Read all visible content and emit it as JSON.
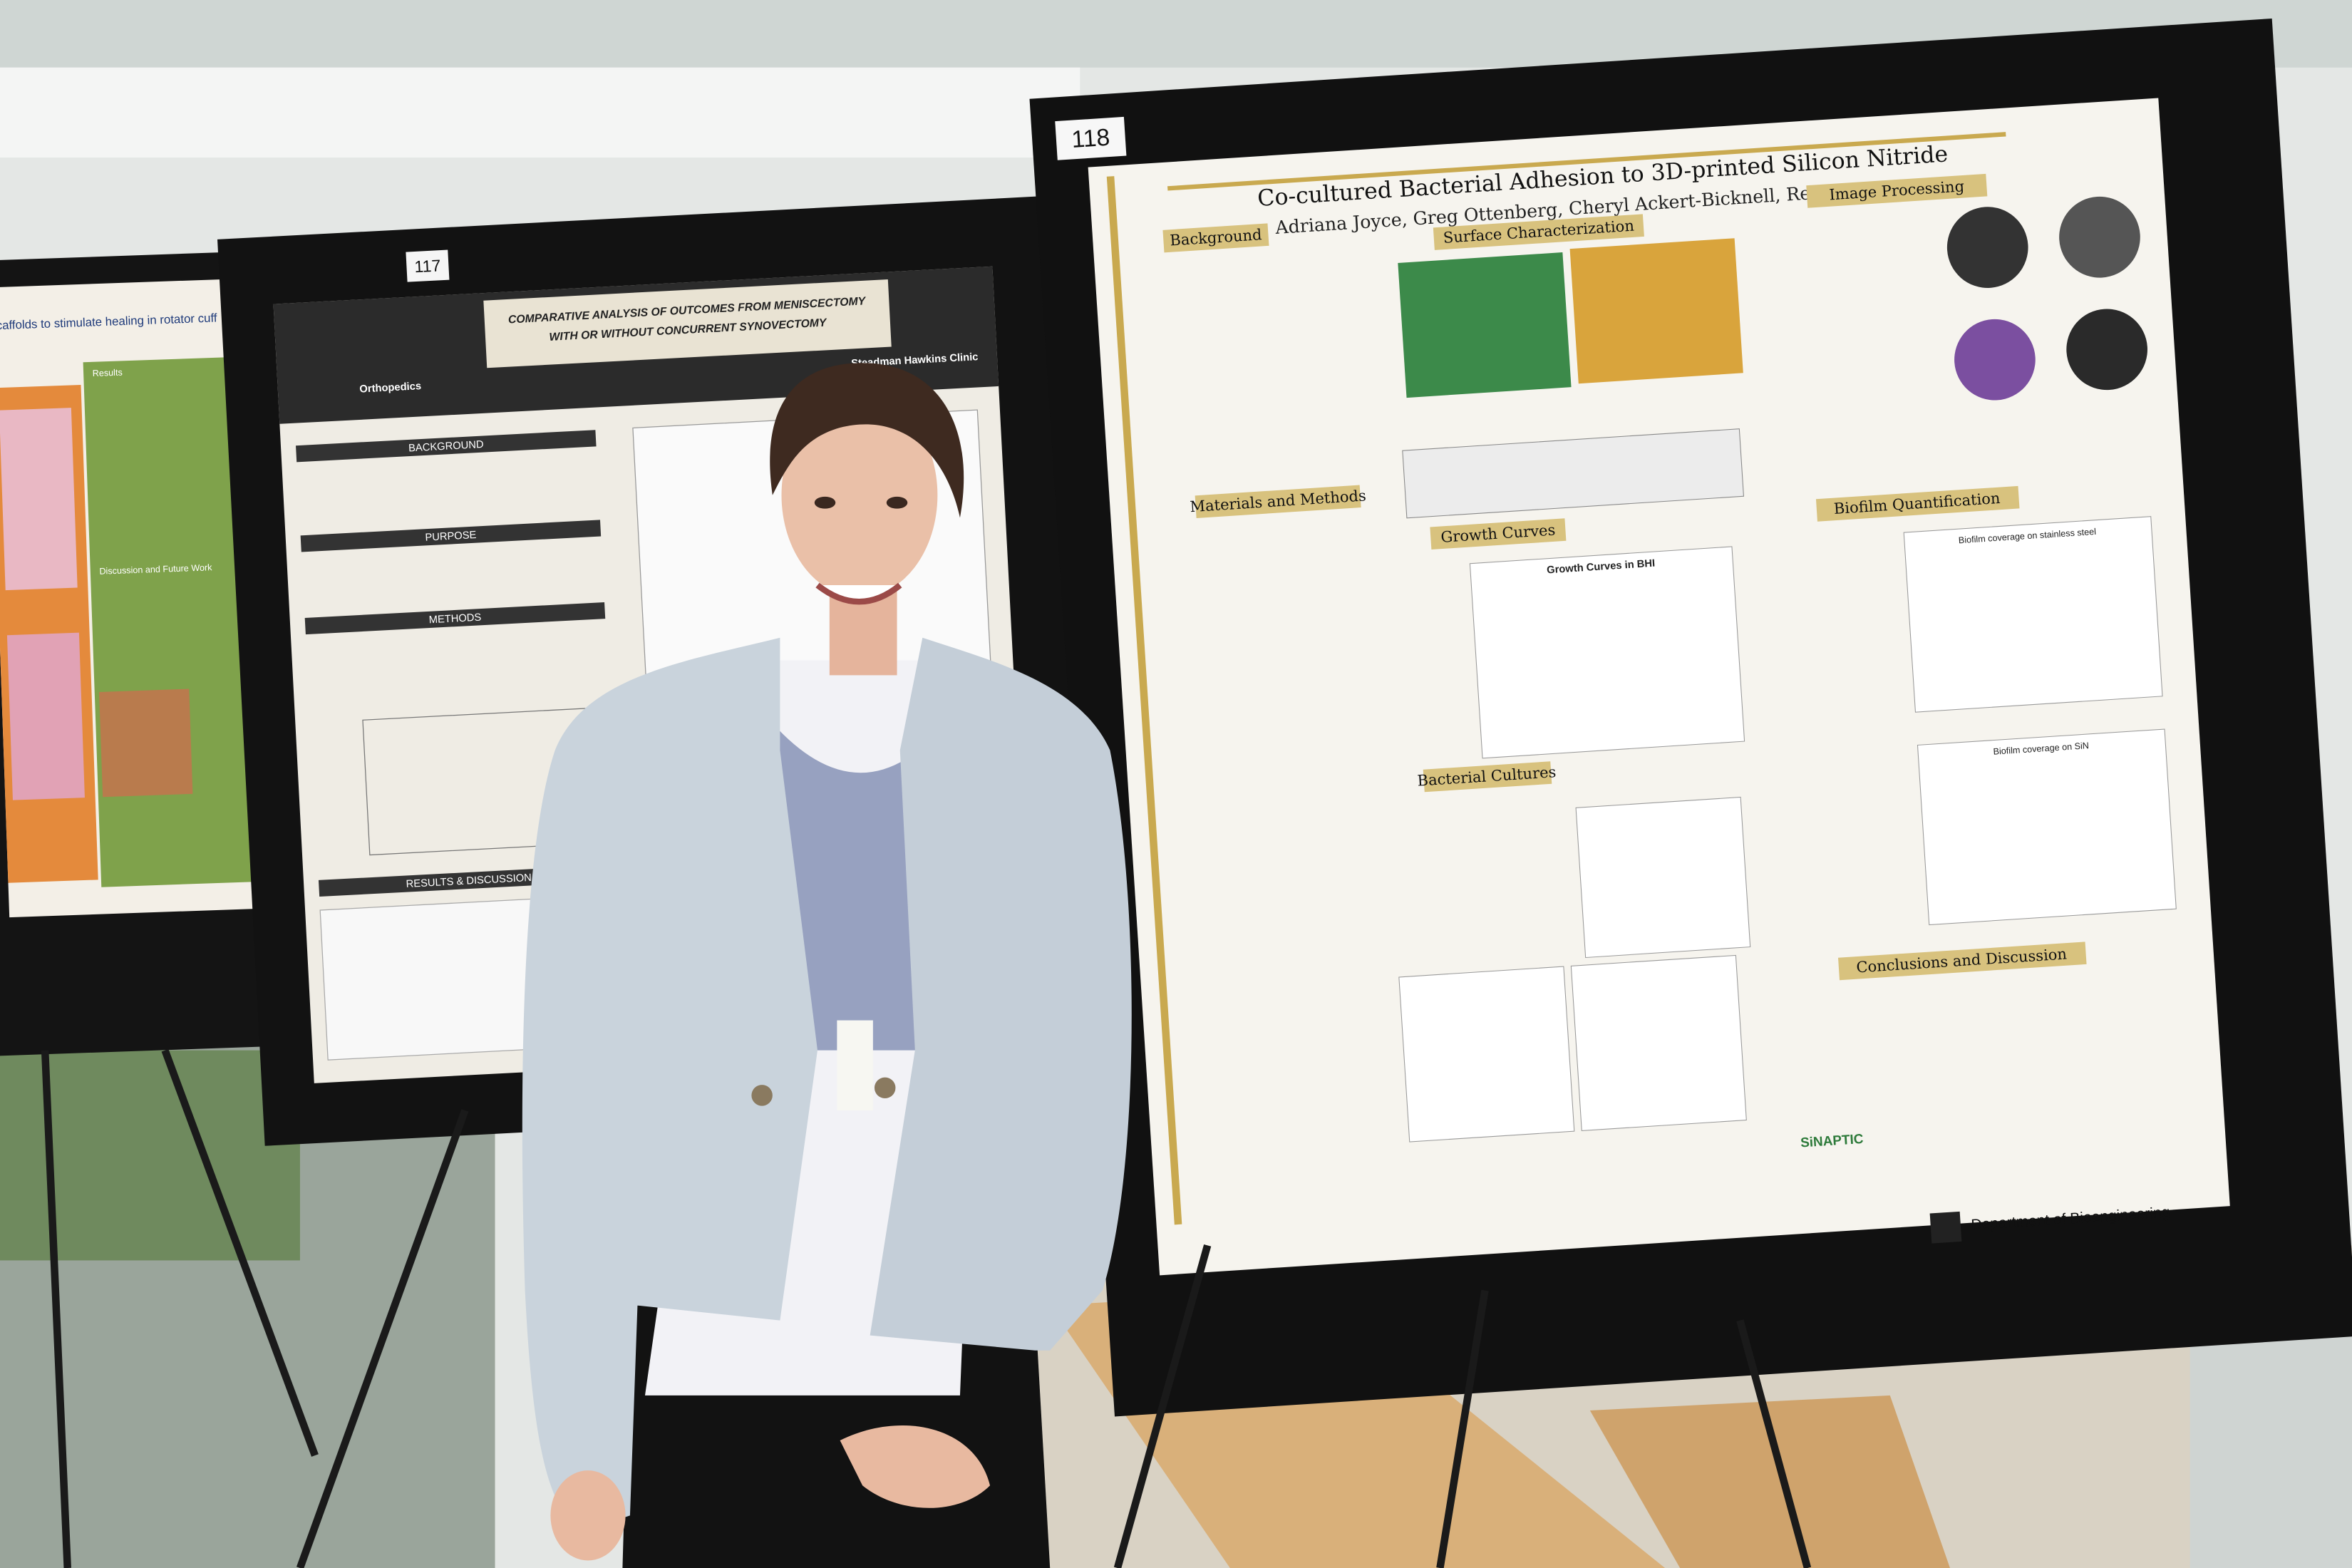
{
  "posters": [
    {
      "number": "118",
      "title": "Co-cultured Bacterial Adhesion to 3D-printed Silicon Nitride",
      "authors": "Adriana Joyce, Greg Ottenberg, Cheryl Ackert-Bicknell, Reed Ayers",
      "sections": [
        "Background",
        "Surface Characterization",
        "Image Processing",
        "Materials and Methods",
        "Growth Curves",
        "Biofilm Quantification",
        "Bacterial Cultures",
        "Conclusions and Discussion"
      ],
      "chart_titles": [
        "Growth Curves in BHI",
        "Biofilm coverage on stainless steel",
        "Biofilm coverage on SiN"
      ],
      "footer": "Department of Bioengineering",
      "sponsor": "SiNAPTIC"
    },
    {
      "number": "117",
      "title_lines": [
        "COMPARATIVE ANALYSIS OF OUTCOMES FROM MENISCECTOMY",
        "WITH OR WITHOUT CONCURRENT SYNOVECTOMY"
      ],
      "affiliations": [
        "Orthopedics",
        "Steadman Hawkins Clinic"
      ],
      "sections": [
        "BACKGROUND",
        "PURPOSE",
        "METHODS",
        "RESULTS & DISCUSSION"
      ]
    },
    {
      "title": "caffolds to stimulate healing in rotator cuff",
      "sections": [
        "Results",
        "Discussion and Future Work"
      ]
    }
  ]
}
